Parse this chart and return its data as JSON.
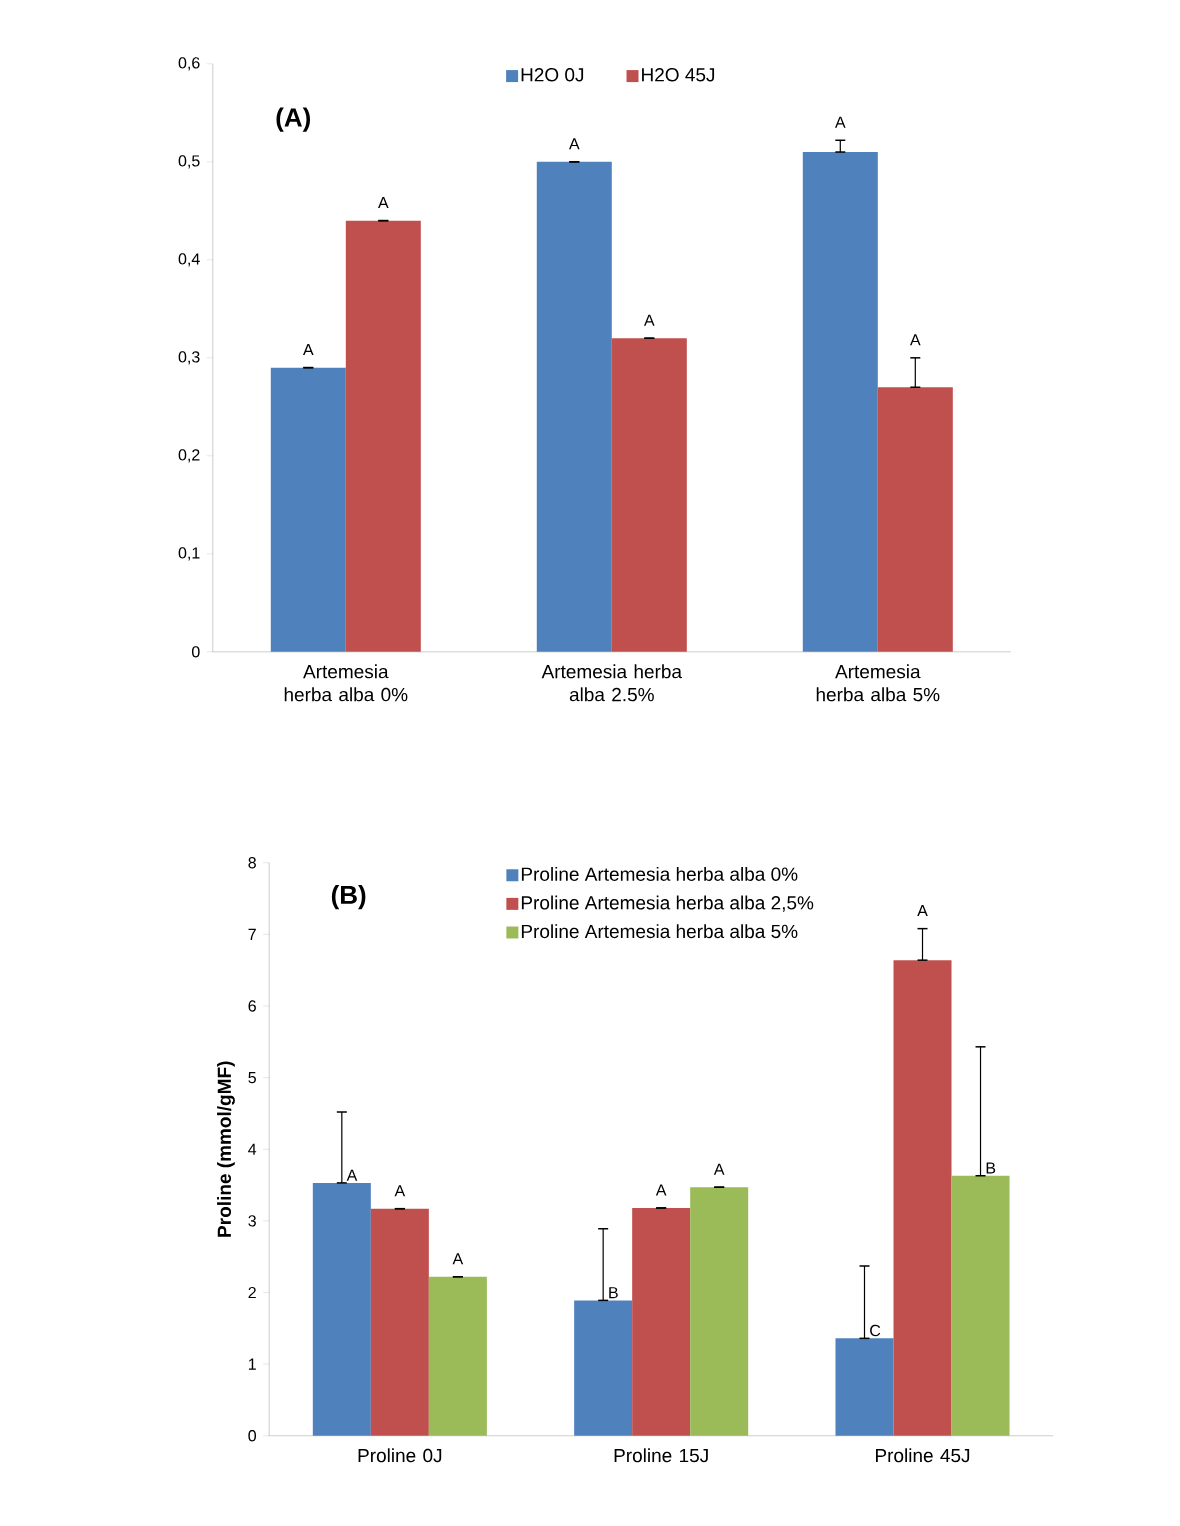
{
  "chart_data": [
    {
      "type": "bar",
      "annotations": [
        "(A)"
      ],
      "categories": [
        "Artemesia herba alba 0%",
        "Artemesia herba alba 2.5%",
        "Artemesia herba alba 5%"
      ],
      "series": [
        {
          "name": "H2O 0J",
          "color": "#4f81bd",
          "values": [
            0.29,
            0.5,
            0.51
          ],
          "errors": [
            [
              0.29,
              0.29
            ],
            [
              0.5,
              0.5
            ],
            [
              0.51,
              0.522
            ]
          ],
          "value_labels": [
            "A",
            "A",
            "A"
          ]
        },
        {
          "name": "H2O 45J",
          "color": "#c0504d",
          "values": [
            0.44,
            0.32,
            0.27
          ],
          "errors": [
            [
              0.44,
              0.44
            ],
            [
              0.32,
              0.32
            ],
            [
              0.27,
              0.3
            ]
          ],
          "value_labels": [
            "A",
            "A",
            "A"
          ]
        }
      ],
      "ylim": [
        0,
        0.6
      ],
      "yticks": [
        0,
        {
          "value": 0.1,
          "label": "0,1"
        },
        {
          "value": 0.2,
          "label": "0,2"
        },
        {
          "value": 0.3,
          "label": "0,3"
        },
        {
          "value": 0.4,
          "label": "0,4"
        },
        {
          "value": 0.5,
          "label": "0,5"
        },
        {
          "value": 0.6,
          "label": "0,6"
        }
      ],
      "legend": "top"
    },
    {
      "type": "bar",
      "annotations": [
        "(B)"
      ],
      "ylabel": "Proline (mmol/gMF)",
      "categories": [
        "Proline 0J",
        "Proline 15J",
        "Proline 45J"
      ],
      "series": [
        {
          "name": "Proline Artemesia herba alba 0%",
          "color": "#4f81bd",
          "values": [
            3.53,
            1.89,
            1.36
          ],
          "errors": [
            [
              3.53,
              4.52
            ],
            [
              1.89,
              2.89
            ],
            [
              1.36,
              2.37
            ]
          ],
          "value_labels": [
            "A",
            "B",
            "C"
          ]
        },
        {
          "name": "Proline Artemesia herba alba 2,5%",
          "color": "#c0504d",
          "values": [
            3.17,
            3.18,
            6.64
          ],
          "errors": [
            [
              3.17,
              3.17
            ],
            [
              3.18,
              3.18
            ],
            [
              6.64,
              7.08
            ]
          ],
          "value_labels": [
            "A",
            "A",
            "A"
          ]
        },
        {
          "name": "Proline Artemesia herba alba 5%",
          "color": "#9bbb59",
          "values": [
            2.22,
            3.47,
            3.63
          ],
          "errors": [
            [
              2.22,
              2.22
            ],
            [
              3.47,
              3.47
            ],
            [
              3.63,
              5.43
            ]
          ],
          "value_labels": [
            "A",
            "A",
            "B"
          ]
        }
      ],
      "ylim": [
        0,
        8
      ],
      "yticks": [
        0,
        1,
        2,
        3,
        4,
        5,
        6,
        7,
        8
      ],
      "legend": "top"
    }
  ]
}
